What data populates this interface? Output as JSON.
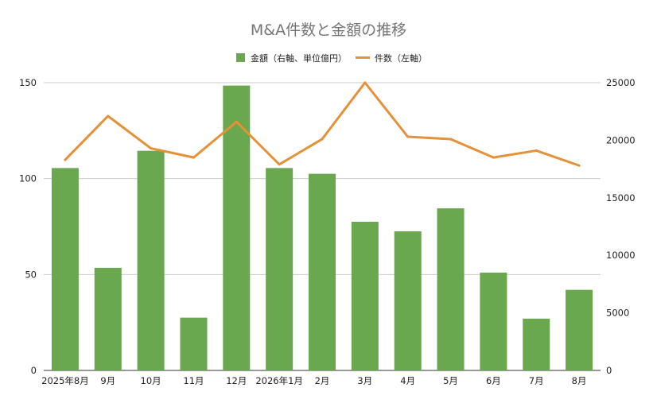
{
  "chart_data": {
    "type": "bar",
    "title": "M&A件数と金額の推移",
    "categories": [
      "2025年8月",
      "9月",
      "10月",
      "11月",
      "12月",
      "2026年1月",
      "2月",
      "3月",
      "4月",
      "5月",
      "6月",
      "7月",
      "8月"
    ],
    "series": [
      {
        "name": "金額（右軸、単位億円）",
        "type": "bar",
        "axis": "left",
        "color": "#6aa84f",
        "values": [
          105.5,
          53.5,
          114.5,
          27.5,
          148.5,
          105.5,
          102.5,
          77.5,
          72.5,
          84.5,
          51,
          27,
          42
        ]
      },
      {
        "name": "件数（左軸）",
        "type": "line",
        "axis": "right",
        "color": "#e69138",
        "values": [
          18300,
          22100,
          19300,
          18500,
          21600,
          17900,
          20100,
          25000,
          20300,
          20100,
          18500,
          19100,
          17800
        ]
      }
    ],
    "left_axis": {
      "ylim": [
        0,
        150
      ],
      "ticks": [
        "0",
        "50",
        "100",
        "150"
      ]
    },
    "right_axis": {
      "ylim": [
        0,
        25000
      ],
      "ticks": [
        "0",
        "5000",
        "10000",
        "15000",
        "20000",
        "25000"
      ]
    },
    "grid": true,
    "legend_position": "top"
  }
}
